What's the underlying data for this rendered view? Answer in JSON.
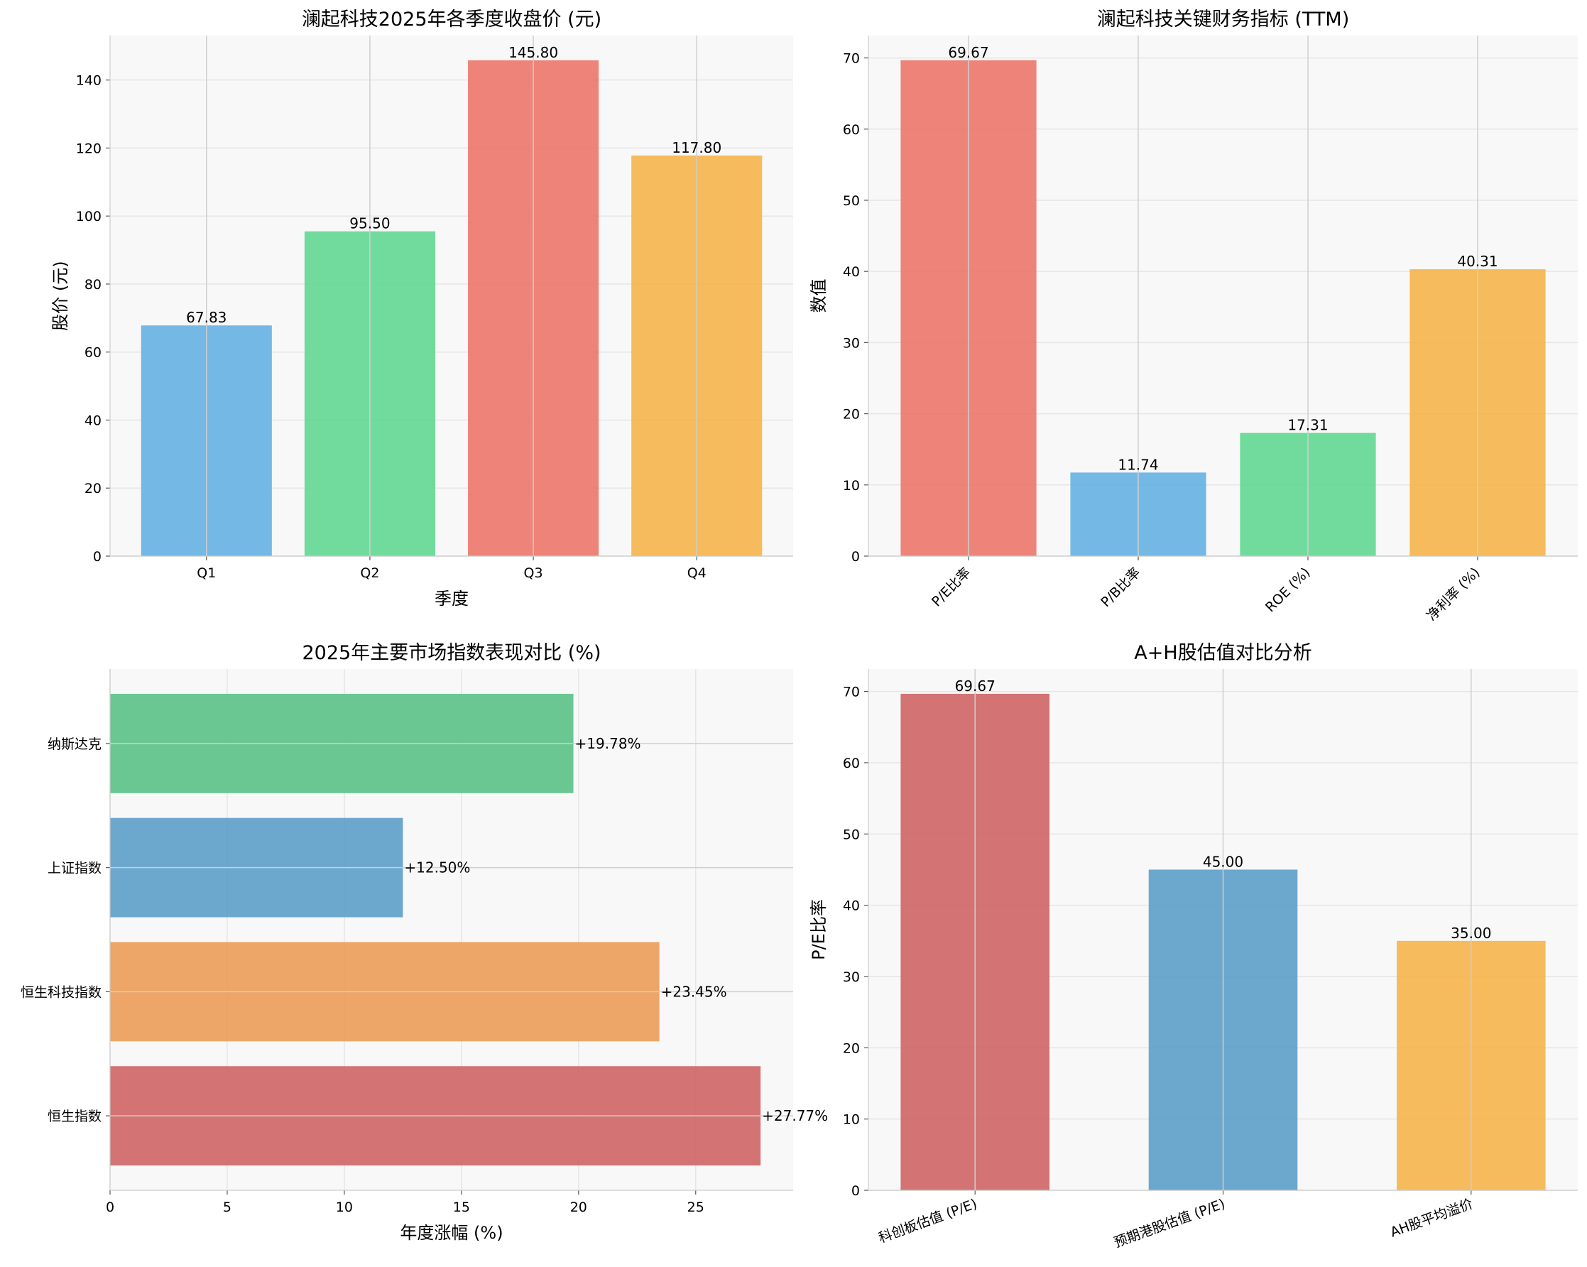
{
  "chart_data": [
    {
      "type": "bar",
      "title": "澜起科技2025年各季度收盘价 (元)",
      "xlabel": "季度",
      "ylabel": "股价 (元)",
      "categories": [
        "Q1",
        "Q2",
        "Q3",
        "Q4"
      ],
      "values": [
        67.83,
        95.5,
        145.8,
        117.8
      ],
      "data_labels": [
        "67.83",
        "95.50",
        "145.80",
        "117.80"
      ],
      "ylim": [
        0,
        153.09
      ],
      "yticks": [
        0,
        20,
        40,
        60,
        80,
        100,
        120,
        140
      ],
      "colors": [
        "#5DADE2",
        "#58D68D",
        "#EC7063",
        "#F5B041"
      ],
      "grid": true
    },
    {
      "type": "bar",
      "title": "澜起科技关键财务指标 (TTM)",
      "xlabel": "",
      "ylabel": "数值",
      "categories": [
        "P/E比率",
        "P/B比率",
        "ROE (%)",
        "净利率 (%)"
      ],
      "values": [
        69.67,
        11.74,
        17.31,
        40.31
      ],
      "data_labels": [
        "69.67",
        "11.74",
        "17.31",
        "40.31"
      ],
      "ylim": [
        0,
        73.15
      ],
      "yticks": [
        0,
        10,
        20,
        30,
        40,
        50,
        60,
        70
      ],
      "colors": [
        "#EC7063",
        "#5DADE2",
        "#58D68D",
        "#F5B041"
      ],
      "grid": true
    },
    {
      "type": "bar",
      "orientation": "horizontal",
      "title": "2025年主要市场指数表现对比 (%)",
      "xlabel": "年度涨幅 (%)",
      "ylabel": "",
      "categories": [
        "恒生指数",
        "恒生科技指数",
        "上证指数",
        "纳斯达克"
      ],
      "values": [
        27.77,
        23.45,
        12.5,
        19.78
      ],
      "data_labels": [
        "+27.77%",
        "+23.45%",
        "+12.50%",
        "+19.78%"
      ],
      "xlim": [
        0,
        29.16
      ],
      "xticks": [
        0,
        5,
        10,
        15,
        20,
        25
      ],
      "colors": [
        "#CD5C5C",
        "#EB984E",
        "#5499C7",
        "#52BE80"
      ],
      "grid": true
    },
    {
      "type": "bar",
      "title": "A+H股估值对比分析",
      "xlabel": "",
      "ylabel": "P/E比率",
      "categories": [
        "科创板估值 (P/E)",
        "预期港股估值 (P/E)",
        "AH股平均溢价"
      ],
      "values": [
        69.67,
        45.0,
        35.0
      ],
      "data_labels": [
        "69.67",
        "45.00",
        "35.00"
      ],
      "ylim": [
        0,
        73.15
      ],
      "yticks": [
        0,
        10,
        20,
        30,
        40,
        50,
        60,
        70
      ],
      "colors": [
        "#CD5C5C",
        "#5499C7",
        "#F5B041"
      ],
      "grid": true
    }
  ]
}
